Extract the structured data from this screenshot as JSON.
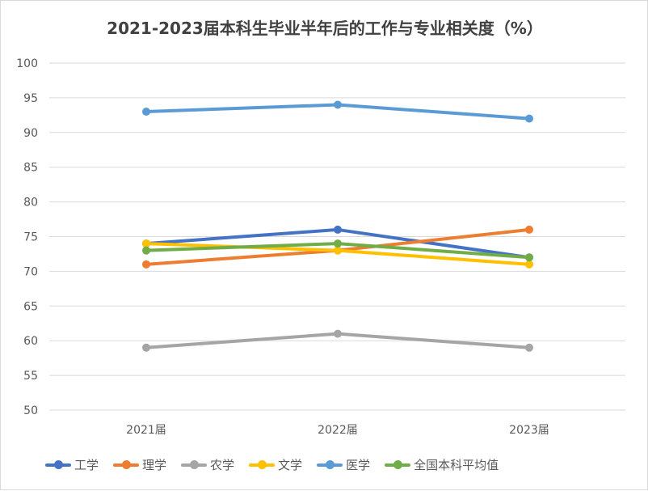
{
  "chart_data": {
    "type": "line",
    "title": "2021-2023届本科生毕业半年后的工作与专业相关度（%）",
    "categories": [
      "2021届",
      "2022届",
      "2023届"
    ],
    "ylim": [
      50,
      100
    ],
    "yticks": [
      50,
      55,
      60,
      65,
      70,
      75,
      80,
      85,
      90,
      95,
      100
    ],
    "grid": true,
    "legend_position": "bottom",
    "series": [
      {
        "name": "工学",
        "values": [
          74,
          76,
          72
        ],
        "color": "#4472C4"
      },
      {
        "name": "理学",
        "values": [
          71,
          73,
          76
        ],
        "color": "#ED7D31"
      },
      {
        "name": "农学",
        "values": [
          59,
          61,
          59
        ],
        "color": "#A5A5A5"
      },
      {
        "name": "文学",
        "values": [
          74,
          73,
          71
        ],
        "color": "#FFC000"
      },
      {
        "name": "医学",
        "values": [
          93,
          94,
          92
        ],
        "color": "#5B9BD5"
      },
      {
        "name": "全国本科平均值",
        "values": [
          73,
          74,
          72
        ],
        "color": "#70AD47"
      }
    ]
  }
}
